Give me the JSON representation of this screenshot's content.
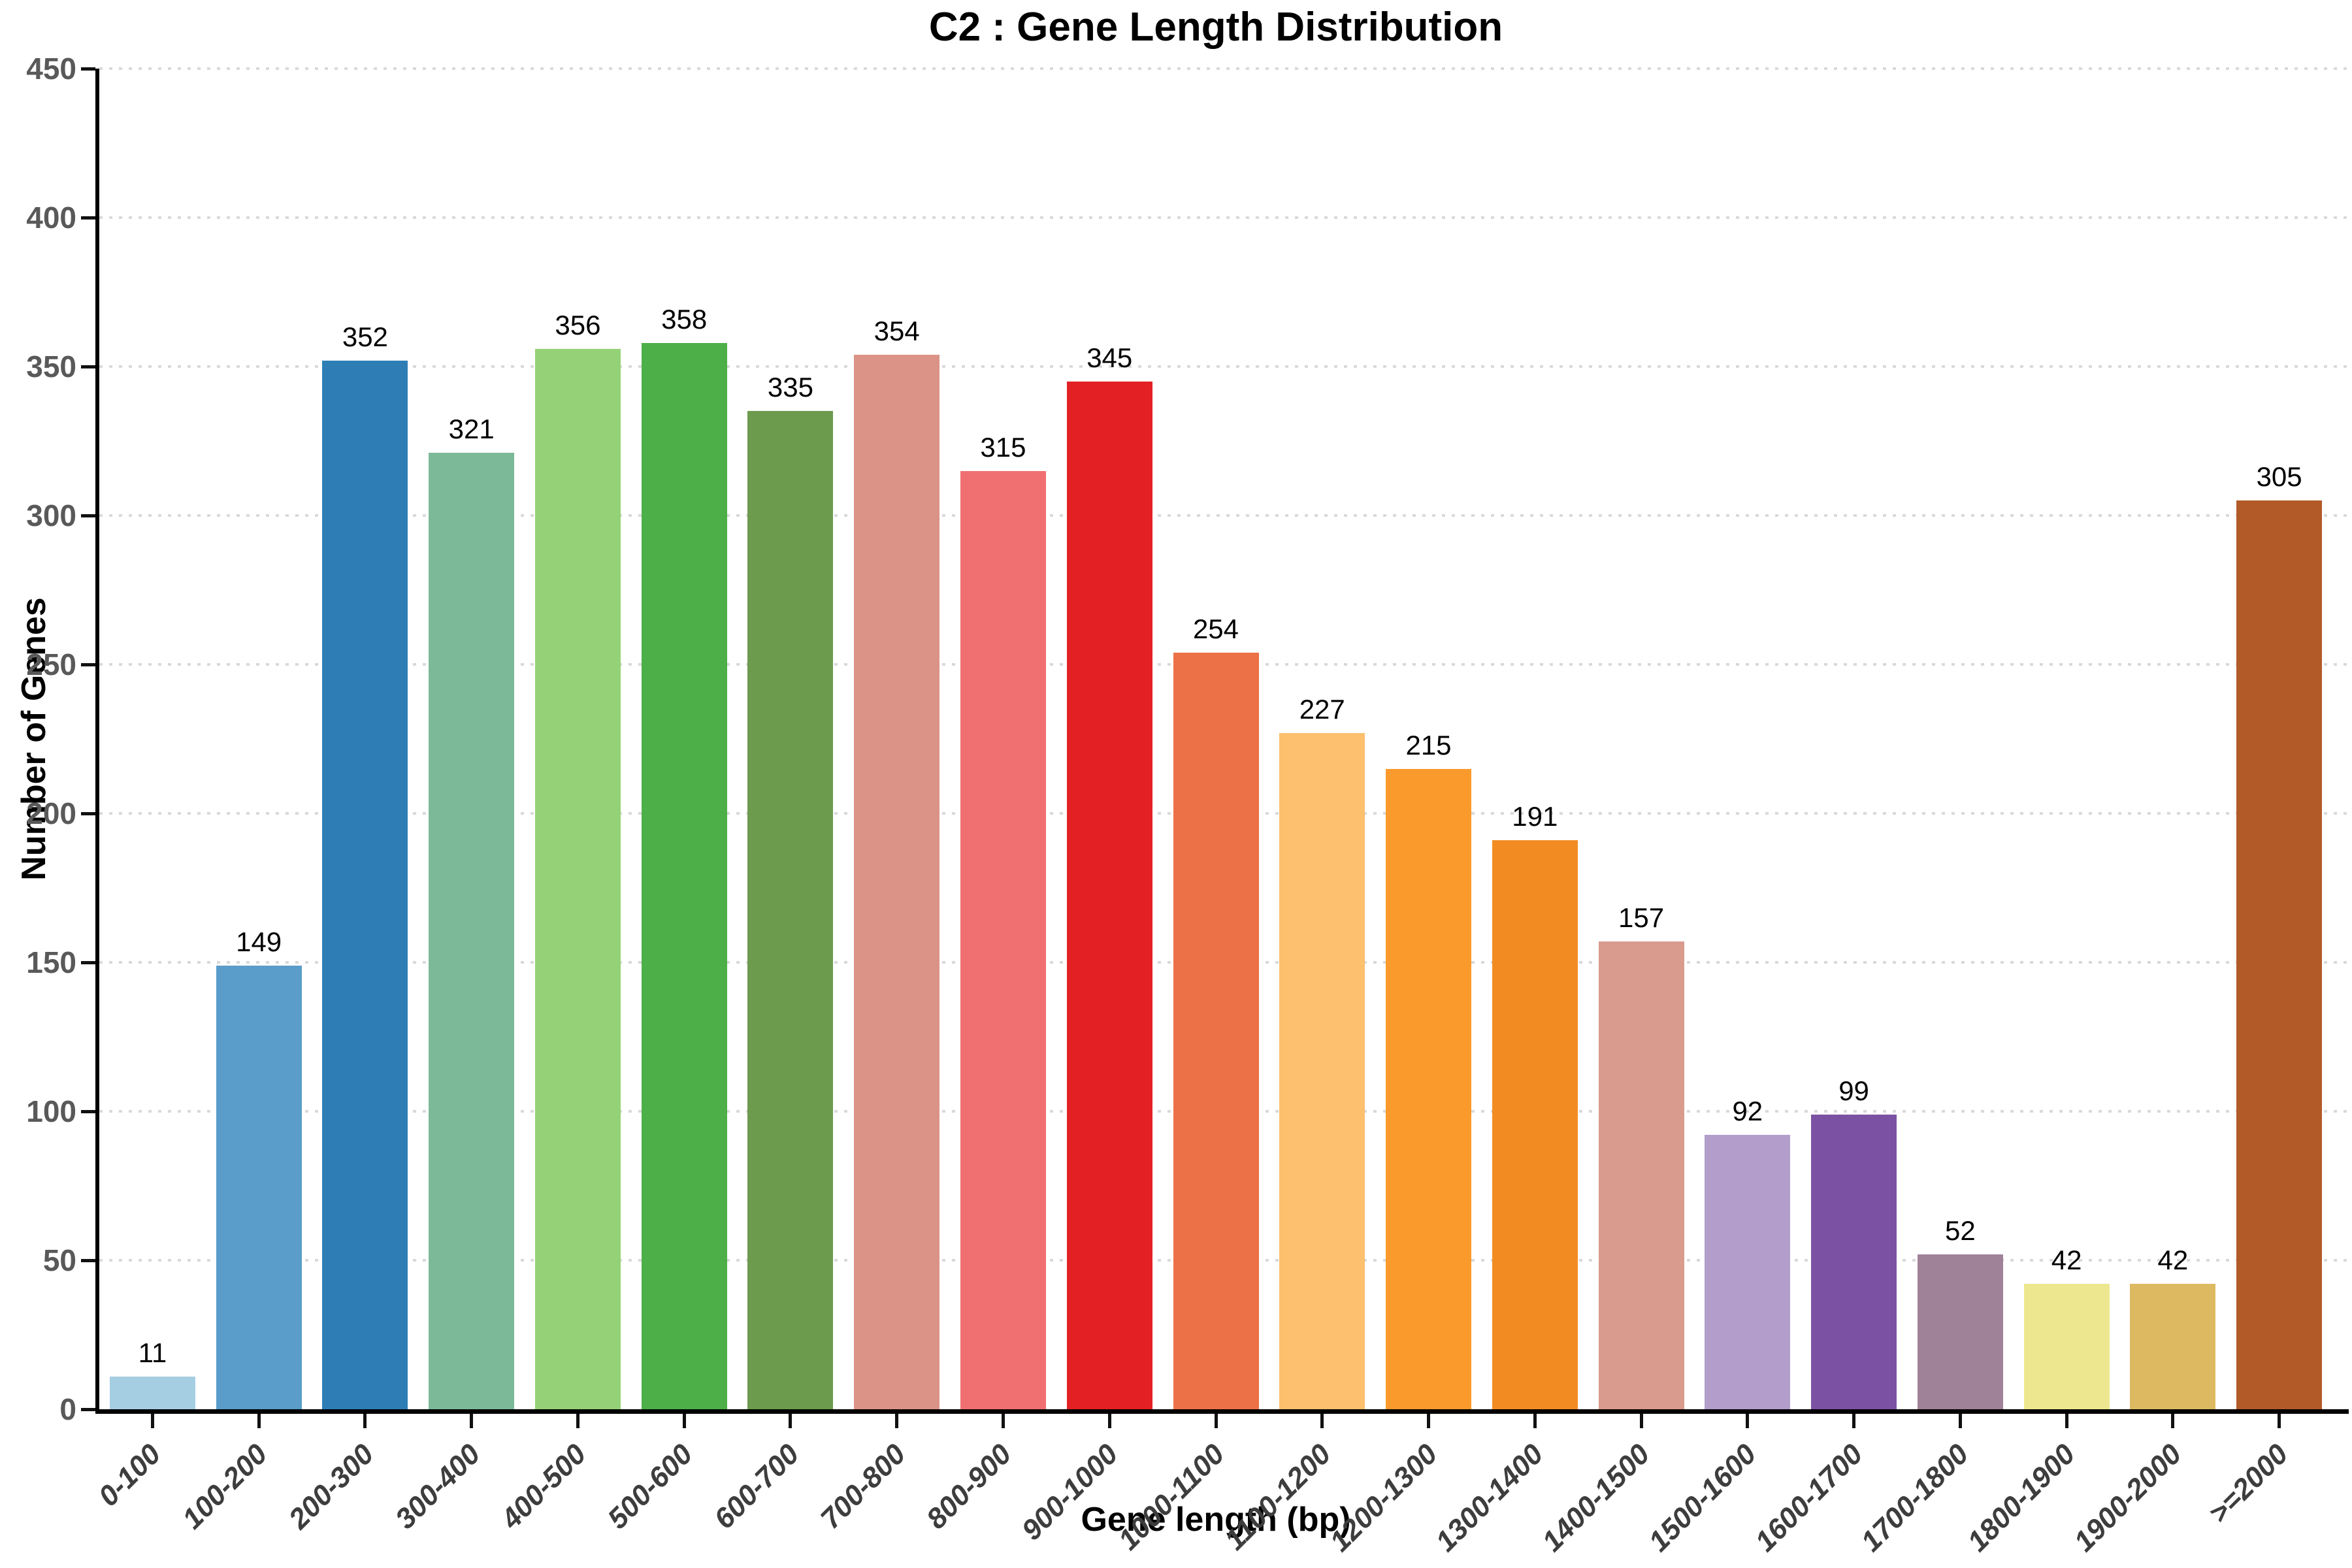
{
  "title": "C2 : Gene Length Distribution",
  "chart_data": {
    "type": "bar",
    "title": "C2 : Gene Length Distribution",
    "xlabel": "Gene length (bp)",
    "ylabel": "Number of Genes",
    "categories": [
      "0-100",
      "100-200",
      "200-300",
      "300-400",
      "400-500",
      "500-600",
      "600-700",
      "700-800",
      "800-900",
      "900-1000",
      "1000-1100",
      "1100-1200",
      "1200-1300",
      "1300-1400",
      "1400-1500",
      "1500-1600",
      "1600-1700",
      "1700-1800",
      "1800-1900",
      "1900-2000",
      ">=2000"
    ],
    "values": [
      11,
      149,
      352,
      321,
      356,
      358,
      335,
      354,
      315,
      345,
      254,
      227,
      215,
      191,
      157,
      92,
      99,
      52,
      42,
      42,
      305
    ],
    "bar_colors": [
      "#A6CEE3",
      "#5A9CCA",
      "#2E7EB5",
      "#7BB998",
      "#95D277",
      "#4CAF48",
      "#6C9B4E",
      "#DB9387",
      "#F07071",
      "#E32124",
      "#ED7146",
      "#FCC06E",
      "#FA9A2C",
      "#F28C22",
      "#D99B8E",
      "#B29DCB",
      "#7B52A3",
      "#9F8198",
      "#EDE88F",
      "#DDBA62",
      "#B25A28"
    ],
    "value_labels": [
      "11",
      "149",
      "352",
      "321",
      "356",
      "358",
      "335",
      "354",
      "315",
      "345",
      "254",
      "227",
      "215",
      "191",
      "157",
      "92",
      "99",
      "52",
      "42",
      "42",
      "305"
    ],
    "ylim": [
      0,
      450
    ],
    "yticks": [
      0,
      50,
      100,
      150,
      200,
      250,
      300,
      350,
      400,
      450
    ],
    "grid": "horizontal-dotted",
    "legend_position": "none"
  },
  "colors": {
    "background": "#FFFFFF",
    "grid": "#D9D9D9",
    "spine": "#000000",
    "ytick_label": "#595959",
    "xtick_label": "#3D3D3D",
    "value_label": "#000000"
  }
}
